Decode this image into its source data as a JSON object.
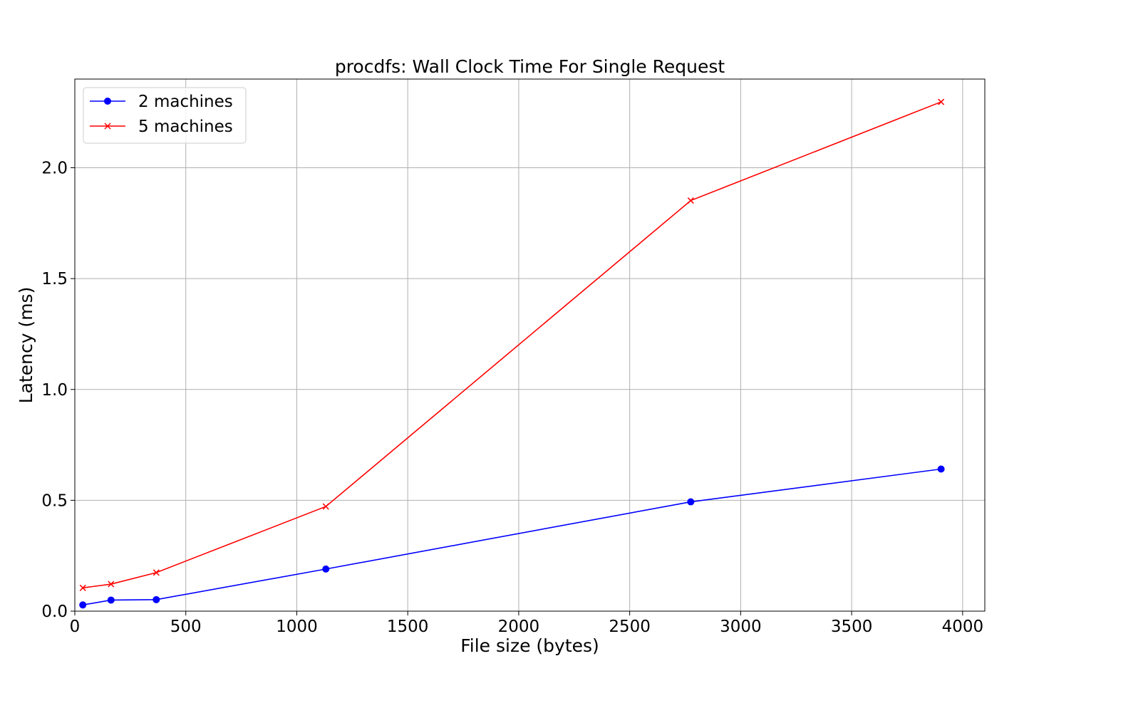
{
  "chart_data": {
    "type": "line",
    "title": "procdfs: Wall Clock Time For Single Request",
    "xlabel": "File size (bytes)",
    "ylabel": "Latency (ms)",
    "xlim": [
      0,
      4100
    ],
    "ylim": [
      0,
      2.4
    ],
    "xticks": [
      0,
      500,
      1000,
      1500,
      2000,
      2500,
      3000,
      3500,
      4000
    ],
    "yticks": [
      0.0,
      0.5,
      1.0,
      1.5,
      2.0
    ],
    "xtick_labels": [
      "0",
      "500",
      "1000",
      "1500",
      "2000",
      "2500",
      "3000",
      "3500",
      "4000"
    ],
    "ytick_labels": [
      "0.0",
      "0.5",
      "1.0",
      "1.5",
      "2.0"
    ],
    "grid": true,
    "legend_position": "top-left",
    "series": [
      {
        "name": "2 machines",
        "color": "#0000ff",
        "marker": "circle",
        "x": [
          36,
          163,
          367,
          1131,
          2775,
          3903
        ],
        "y": [
          0.028,
          0.05,
          0.052,
          0.19,
          0.493,
          0.641
        ]
      },
      {
        "name": "5 machines",
        "color": "#ff0000",
        "marker": "x",
        "x": [
          36,
          163,
          367,
          1131,
          2775,
          3903
        ],
        "y": [
          0.105,
          0.122,
          0.174,
          0.472,
          1.852,
          2.297
        ]
      }
    ]
  }
}
